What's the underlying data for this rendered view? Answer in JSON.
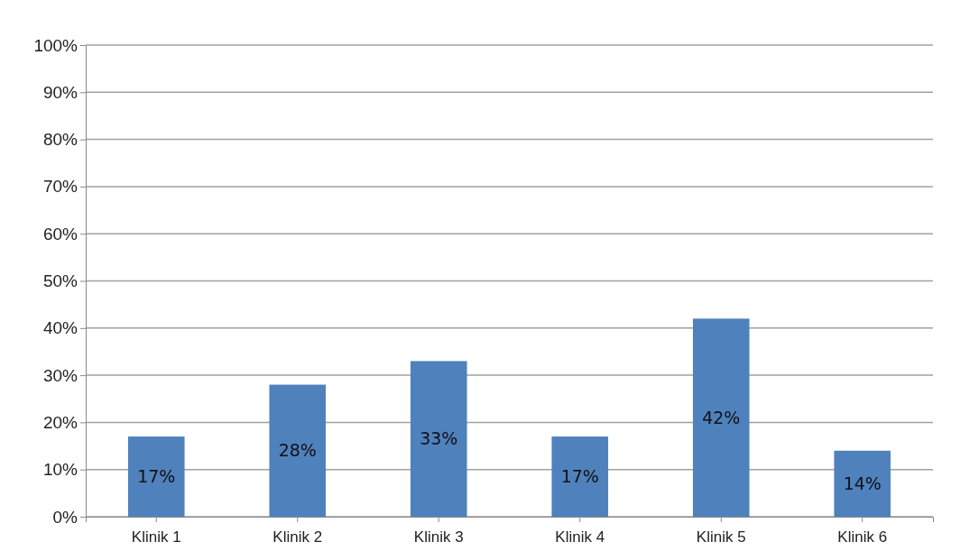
{
  "chart_data": {
    "type": "bar",
    "categories": [
      "Klinik 1",
      "Klinik 2",
      "Klinik 3",
      "Klinik 4",
      "Klinik 5",
      "Klinik 6"
    ],
    "values": [
      17,
      28,
      33,
      17,
      42,
      14
    ],
    "value_labels": [
      "17%",
      "28%",
      "33%",
      "17%",
      "42%",
      "14%"
    ],
    "color": "#4f81bd",
    "ylim": [
      0,
      100
    ],
    "yticks": [
      {
        "value": 0,
        "label": "0%"
      },
      {
        "value": 10,
        "label": "10%"
      },
      {
        "value": 20,
        "label": "20%"
      },
      {
        "value": 30,
        "label": "30%"
      },
      {
        "value": 40,
        "label": "40%"
      },
      {
        "value": 50,
        "label": "50%"
      },
      {
        "value": 60,
        "label": "60%"
      },
      {
        "value": 70,
        "label": "70%"
      },
      {
        "value": 80,
        "label": "80%"
      },
      {
        "value": 90,
        "label": "90%"
      },
      {
        "value": 100,
        "label": "100%"
      }
    ],
    "grid": "y"
  }
}
